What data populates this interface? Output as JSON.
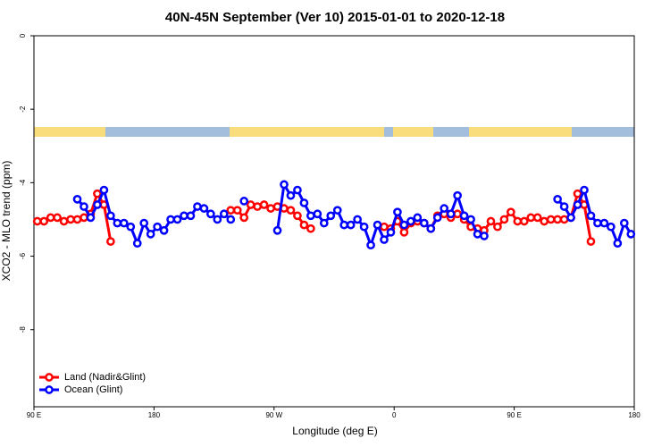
{
  "chart_data": {
    "type": "line",
    "title": "40N-45N September (Ver 10)   2015-01-01 to 2020-12-18",
    "x_label": "Longitude (deg E)",
    "y_label": "XCO2 - MLO trend (ppm)",
    "xlim": [
      90,
      540
    ],
    "ylim": [
      -10.1,
      0
    ],
    "xticks": [
      {
        "value": 90,
        "label": "90 E"
      },
      180,
      {
        "value": 270,
        "label": "90 W"
      },
      {
        "value": 360,
        "label": "0"
      },
      {
        "value": 450,
        "label": "90 E"
      },
      {
        "value": 540,
        "label": "180"
      }
    ],
    "yticks": [
      0,
      -2,
      -4,
      -6,
      -8
    ],
    "legend": "bottom-left",
    "series": [
      {
        "name": "Land (Nadir&Glint)",
        "color": "#ff0000",
        "x": [
          92.5,
          97.5,
          102.5,
          107.5,
          112.5,
          117.5,
          122.5,
          127.5,
          132.5,
          137.5,
          142.5,
          147.5,
          152.5,
          157.5,
          162.5,
          167.5,
          172.5,
          177.5,
          182.5,
          187.5,
          192.5,
          197.5,
          202.5,
          207.5,
          212.5,
          217.5,
          222.5,
          227.5,
          232.5,
          237.5,
          242.5,
          247.5,
          252.5,
          257.5,
          262.5,
          267.5,
          272.5,
          277.5,
          282.5,
          287.5,
          292.5,
          297.5,
          302.5,
          307.5,
          312.5,
          317.5,
          322.5,
          327.5,
          332.5,
          337.5,
          342.5,
          347.5,
          352.5,
          357.5,
          362.5,
          367.5,
          372.5,
          377.5,
          382.5,
          387.5,
          392.5,
          397.5,
          402.5,
          407.5,
          412.5,
          417.5,
          422.5,
          427.5,
          432.5,
          437.5,
          442.5,
          447.5,
          452.5,
          457.5,
          462.5,
          467.5,
          472.5,
          477.5,
          482.5,
          487.5,
          492.5,
          497.5,
          502.5,
          507.5
        ],
        "values": [
          -5.05,
          -5.05,
          -4.95,
          -4.95,
          -5.05,
          -5.0,
          -5.0,
          -4.95,
          -4.85,
          -4.3,
          -4.6,
          -5.6,
          null,
          null,
          null,
          null,
          null,
          null,
          null,
          null,
          null,
          null,
          null,
          null,
          null,
          null,
          null,
          null,
          null,
          -4.75,
          -4.75,
          -4.95,
          -4.6,
          -4.65,
          -4.6,
          -4.7,
          -4.65,
          -4.7,
          -4.75,
          -4.9,
          -5.15,
          -5.25,
          null,
          null,
          null,
          null,
          null,
          null,
          null,
          null,
          null,
          null,
          -5.2,
          -5.25,
          -5.05,
          -5.35,
          -5.1,
          -5.05,
          -5.1,
          -5.25,
          -4.9,
          -4.85,
          -4.95,
          -4.85,
          -5.0,
          -5.2,
          -5.25,
          -5.3,
          -5.05,
          -5.2,
          -5.0,
          -4.8,
          -5.05,
          -5.05,
          -4.95,
          -4.95,
          -5.05,
          -5.0,
          -5.0,
          -5.0,
          -4.95,
          -4.3,
          -4.6,
          -5.6
        ]
      },
      {
        "name": "Ocean (Glint)",
        "color": "#0000ff",
        "x": [
          122.5,
          127.5,
          132.5,
          137.5,
          142.5,
          147.5,
          152.5,
          157.5,
          162.5,
          167.5,
          172.5,
          177.5,
          182.5,
          187.5,
          192.5,
          197.5,
          202.5,
          207.5,
          212.5,
          217.5,
          222.5,
          227.5,
          232.5,
          237.5,
          242.5,
          247.5,
          252.5,
          257.5,
          262.5,
          267.5,
          272.5,
          277.5,
          282.5,
          287.5,
          292.5,
          297.5,
          302.5,
          307.5,
          312.5,
          317.5,
          322.5,
          327.5,
          332.5,
          337.5,
          342.5,
          347.5,
          352.5,
          357.5,
          362.5,
          367.5,
          372.5,
          377.5,
          382.5,
          387.5,
          392.5,
          397.5,
          402.5,
          407.5,
          412.5,
          417.5,
          422.5,
          427.5,
          432.5,
          437.5,
          442.5,
          447.5,
          452.5,
          457.5,
          462.5,
          467.5,
          472.5,
          477.5,
          482.5,
          487.5,
          492.5,
          497.5,
          502.5,
          507.5,
          512.5,
          517.5,
          522.5,
          527.5,
          532.5,
          537.5
        ],
        "values": [
          -4.45,
          -4.65,
          -4.95,
          -4.6,
          -4.2,
          -4.9,
          -5.1,
          -5.1,
          -5.2,
          -5.65,
          -5.1,
          -5.4,
          -5.2,
          -5.3,
          -5.0,
          -5.0,
          -4.9,
          -4.9,
          -4.65,
          -4.7,
          -4.85,
          -5.0,
          -4.85,
          -5.0,
          null,
          -4.5,
          null,
          null,
          null,
          null,
          -5.3,
          -4.05,
          -4.35,
          -4.2,
          -4.55,
          -4.9,
          -4.85,
          -5.1,
          -4.9,
          -4.75,
          -5.15,
          -5.15,
          -5.0,
          -5.2,
          -5.7,
          -5.15,
          -5.55,
          -5.35,
          -4.8,
          -5.15,
          -5.05,
          -4.95,
          -5.1,
          -5.25,
          -4.95,
          -4.7,
          -4.85,
          -4.35,
          -4.9,
          -5.0,
          -5.4,
          -5.45,
          null,
          null,
          null,
          null,
          null,
          null,
          null,
          null,
          null,
          null,
          -4.45,
          -4.65,
          -4.95,
          -4.6,
          -4.2,
          -4.9,
          -5.1,
          -5.1,
          -5.2,
          -5.65,
          -5.1,
          -5.4
        ]
      }
    ]
  }
}
